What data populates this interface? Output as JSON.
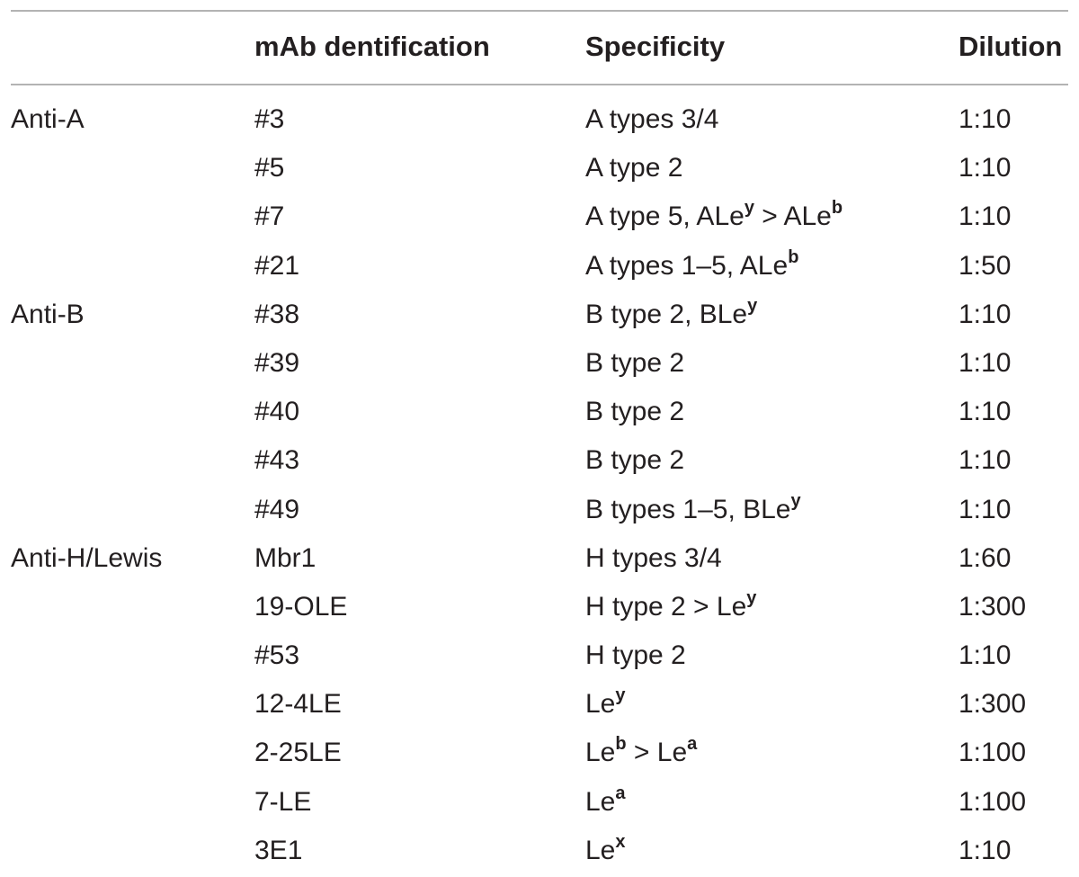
{
  "table": {
    "headers": {
      "group": "",
      "mab": "mAb dentification",
      "specificity": "Specificity",
      "dilution": "Dilution"
    },
    "rows": [
      {
        "group": "Anti-A",
        "mab": "#3",
        "spec": [
          {
            "t": "A types 3/4"
          }
        ],
        "dilution": "1:10"
      },
      {
        "group": "",
        "mab": "#5",
        "spec": [
          {
            "t": "A type 2"
          }
        ],
        "dilution": "1:10"
      },
      {
        "group": "",
        "mab": "#7",
        "spec": [
          {
            "t": "A type 5, ALe"
          },
          {
            "sup": "y"
          },
          {
            "t": " > ALe"
          },
          {
            "sup": "b"
          }
        ],
        "dilution": "1:10"
      },
      {
        "group": "",
        "mab": "#21",
        "spec": [
          {
            "t": "A types 1–5, ALe"
          },
          {
            "sup": "b"
          }
        ],
        "dilution": "1:50"
      },
      {
        "group": "Anti-B",
        "mab": "#38",
        "spec": [
          {
            "t": "B type 2, BLe"
          },
          {
            "sup": "y"
          }
        ],
        "dilution": "1:10"
      },
      {
        "group": "",
        "mab": "#39",
        "spec": [
          {
            "t": "B type 2"
          }
        ],
        "dilution": "1:10"
      },
      {
        "group": "",
        "mab": "#40",
        "spec": [
          {
            "t": "B type 2"
          }
        ],
        "dilution": "1:10"
      },
      {
        "group": "",
        "mab": "#43",
        "spec": [
          {
            "t": "B type 2"
          }
        ],
        "dilution": "1:10"
      },
      {
        "group": "",
        "mab": "#49",
        "spec": [
          {
            "t": "B types 1–5, BLe"
          },
          {
            "sup": "y"
          }
        ],
        "dilution": "1:10"
      },
      {
        "group": "Anti-H/Lewis",
        "mab": "Mbr1",
        "spec": [
          {
            "t": "H types 3/4"
          }
        ],
        "dilution": "1:60"
      },
      {
        "group": "",
        "mab": "19-OLE",
        "spec": [
          {
            "t": "H type 2 > Le"
          },
          {
            "sup": "y"
          }
        ],
        "dilution": "1:300"
      },
      {
        "group": "",
        "mab": "#53",
        "spec": [
          {
            "t": "H type 2"
          }
        ],
        "dilution": "1:10"
      },
      {
        "group": "",
        "mab": "12-4LE",
        "spec": [
          {
            "t": "Le"
          },
          {
            "sup": "y"
          }
        ],
        "dilution": "1:300"
      },
      {
        "group": "",
        "mab": "2-25LE",
        "spec": [
          {
            "t": "Le"
          },
          {
            "sup": "b"
          },
          {
            "t": " > Le"
          },
          {
            "sup": "a"
          }
        ],
        "dilution": "1:100"
      },
      {
        "group": "",
        "mab": "7-LE",
        "spec": [
          {
            "t": "Le"
          },
          {
            "sup": "a"
          }
        ],
        "dilution": "1:100"
      },
      {
        "group": "",
        "mab": "3E1",
        "spec": [
          {
            "t": "Le"
          },
          {
            "sup": "x"
          }
        ],
        "dilution": "1:10"
      }
    ]
  }
}
